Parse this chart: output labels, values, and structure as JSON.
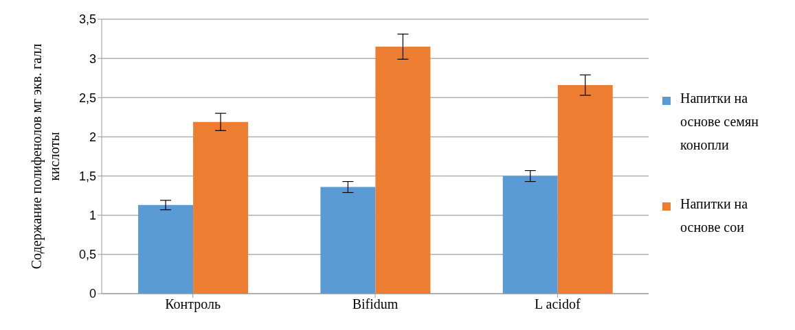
{
  "chart_data": {
    "type": "bar",
    "ylabel": "Содержание полифенолов мг экв. галл кислоты",
    "categories": [
      "Контроль",
      "Bifidum",
      "L acidof"
    ],
    "series": [
      {
        "name": "Напитки на основе семян конопли",
        "color": "#5b9bd5",
        "values": [
          1.13,
          1.36,
          1.5
        ],
        "errors": [
          0.06,
          0.07,
          0.07
        ]
      },
      {
        "name": "Напитки на основе сои",
        "color": "#ed7d31",
        "values": [
          2.19,
          3.15,
          2.66
        ],
        "errors": [
          0.11,
          0.16,
          0.13
        ]
      }
    ],
    "ylim": [
      0,
      3.5
    ],
    "yticks": [
      0,
      {
        "value": 0.5,
        "label": "0,5"
      },
      1,
      {
        "value": 1.5,
        "label": "1,5"
      },
      2,
      {
        "value": 2.5,
        "label": "2,5"
      },
      3,
      {
        "value": 3.5,
        "label": "3,5"
      }
    ],
    "grid": "y",
    "legend": "right"
  }
}
